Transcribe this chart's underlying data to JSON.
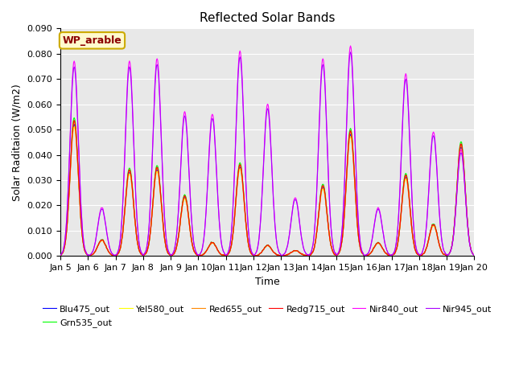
{
  "title": "Reflected Solar Bands",
  "xlabel": "Time",
  "ylabel": "Solar Raditaion (W/m2)",
  "ylim": [
    0,
    0.09
  ],
  "yticks": [
    0.0,
    0.01,
    0.02,
    0.03,
    0.04,
    0.05,
    0.06,
    0.07,
    0.08,
    0.09
  ],
  "annotation_text": "WP_arable",
  "annotation_color": "#8B0000",
  "annotation_bg": "#FFFACD",
  "bg_color": "#E8E8E8",
  "series_colors": {
    "Blu475_out": "#0000FF",
    "Grn535_out": "#00FF00",
    "Yel580_out": "#FFFF00",
    "Red655_out": "#FF8800",
    "Redg715_out": "#FF0000",
    "Nir840_out": "#FF00FF",
    "Nir945_out": "#AA00FF"
  },
  "xtick_labels": [
    "Jan 5",
    "Jan 6",
    "Jan 7",
    "Jan 8",
    "Jan 9",
    "Jan 10",
    "Jan 11",
    "Jan 12",
    "Jan 13",
    "Jan 14",
    "Jan 15",
    "Jan 16",
    "Jan 17",
    "Jan 18",
    "Jan 19",
    "Jan 20"
  ],
  "day_peaks_nir840": [
    0.077,
    0.019,
    0.077,
    0.078,
    0.057,
    0.056,
    0.081,
    0.06,
    0.023,
    0.078,
    0.083,
    0.019,
    0.072,
    0.049,
    0.042
  ],
  "day_peaks_others": [
    0.052,
    0.006,
    0.033,
    0.034,
    0.023,
    0.005,
    0.035,
    0.004,
    0.002,
    0.027,
    0.048,
    0.005,
    0.031,
    0.012,
    0.043
  ],
  "grid_color": "#FFFFFF",
  "linewidth": 0.8
}
